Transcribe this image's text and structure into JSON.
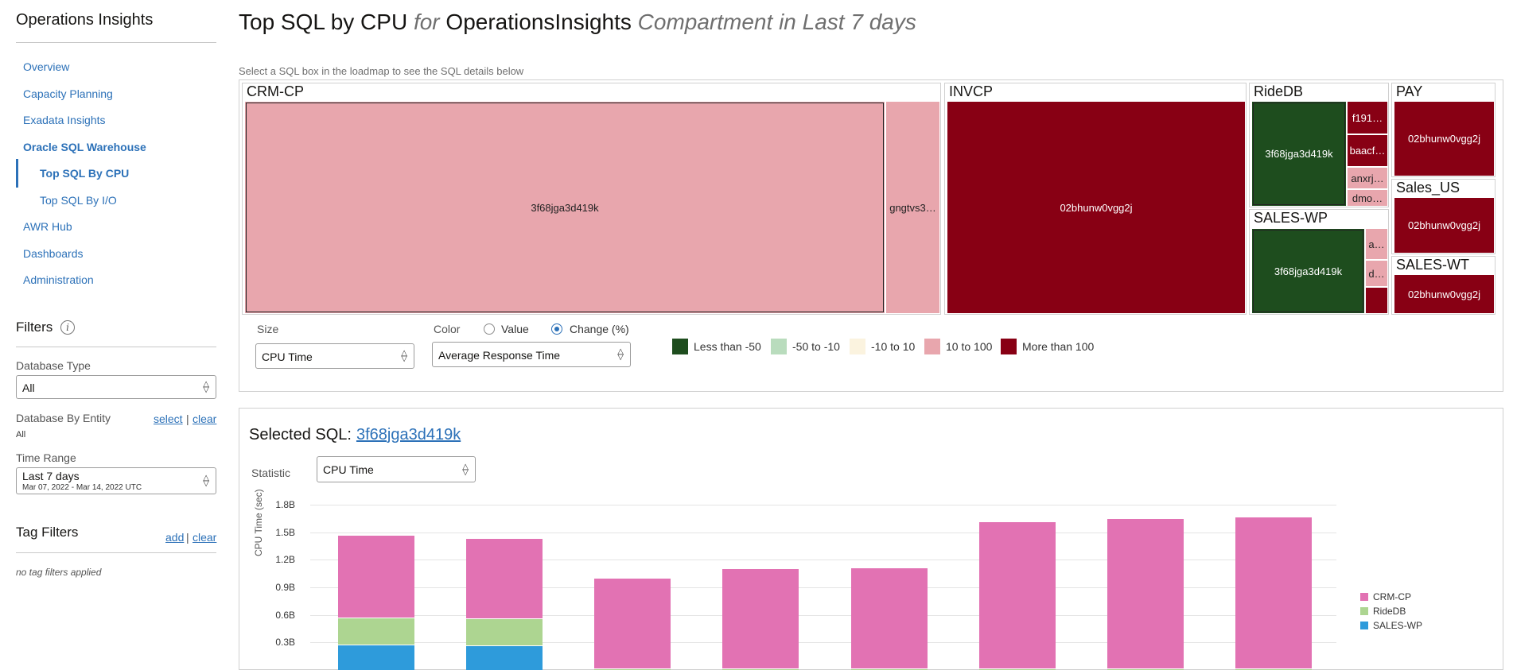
{
  "sidebar": {
    "title": "Operations Insights",
    "nav": [
      "Overview",
      "Capacity Planning",
      "Exadata Insights",
      "Oracle SQL Warehouse",
      "Top SQL By CPU",
      "Top SQL By I/O",
      "AWR Hub",
      "Dashboards",
      "Administration"
    ],
    "filters_title": "Filters",
    "db_type_label": "Database Type",
    "db_type_value": "All",
    "db_entity_label": "Database By Entity",
    "db_entity_value": "All",
    "select_link": "select",
    "clear_link": "clear",
    "time_range_label": "Time Range",
    "time_range_value": "Last 7 days",
    "time_range_sub": "Mar 07, 2022 - Mar 14, 2022 UTC",
    "tag_filters_title": "Tag Filters",
    "add_link": "add",
    "tag_clear_link": "clear",
    "no_tags": "no tag filters applied"
  },
  "header": {
    "part1": "Top SQL by CPU",
    "part2": "for",
    "part3": "OperationsInsights",
    "part4": "Compartment in Last 7 days"
  },
  "hint": "Select a SQL box in the loadmap to see the SQL details below",
  "treemap": {
    "groups": [
      "CRM-CP",
      "INVCP",
      "RideDB",
      "PAY",
      "Sales_US",
      "SALES-WP",
      "SALES-WT"
    ],
    "cells": {
      "crm_main": "3f68jga3d419k",
      "crm_side": "gngtvs3…",
      "invcp_main": "02bhunw0vgg2j",
      "ride_main": "3f68jga3d419k",
      "ride_a": "f191…",
      "ride_b": "baacf…",
      "ride_c": "anxrj…",
      "ride_d": "dmo…",
      "pay_main": "02bhunw0vgg2j",
      "salesus_main": "02bhunw0vgg2j",
      "saleswp_main": "3f68jga3d419k",
      "saleswp_a": "a…",
      "saleswp_b": "d…",
      "saleswt_main": "02bhunw0vgg2j"
    }
  },
  "controls": {
    "size_label": "Size",
    "size_value": "CPU Time",
    "color_label": "Color",
    "radio_value": "Value",
    "radio_change": "Change (%)",
    "color_value": "Average Response Time"
  },
  "legend": [
    {
      "label": "Less than -50",
      "color": "#1e4d1e"
    },
    {
      "label": "-50 to -10",
      "color": "#b9dcbd"
    },
    {
      "label": "-10 to 10",
      "color": "#fbf3df"
    },
    {
      "label": "10 to 100",
      "color": "#e8a6ad"
    },
    {
      "label": "More than 100",
      "color": "#880014"
    }
  ],
  "detail": {
    "selected_label": "Selected SQL:",
    "selected_sql": "3f68jga3d419k",
    "statistic_label": "Statistic",
    "statistic_value": "CPU Time"
  },
  "chart_data": {
    "type": "bar",
    "stacked": true,
    "ylabel": "CPU Time (sec)",
    "yticks": [
      "1.8B",
      "1.5B",
      "1.2B",
      "0.9B",
      "0.6B",
      "0.3B"
    ],
    "ylim": [
      0,
      1.8
    ],
    "categories": [
      "",
      "",
      "",
      "",
      "",
      "",
      "",
      ""
    ],
    "series": [
      {
        "name": "SALES-WP",
        "color": "#2e9bdb",
        "values": [
          0.28,
          0.27,
          0,
          0,
          0,
          0,
          0,
          0
        ]
      },
      {
        "name": "RideDB",
        "color": "#add591",
        "values": [
          0.29,
          0.29,
          0.02,
          0.02,
          0.02,
          0.02,
          0.02,
          0.02
        ]
      },
      {
        "name": "CRM-CP",
        "color": "#e272b3",
        "values": [
          0.9,
          0.88,
          0.98,
          1.09,
          1.1,
          1.6,
          1.63,
          1.65
        ]
      }
    ],
    "legend_order": [
      "CRM-CP",
      "RideDB",
      "SALES-WP"
    ]
  }
}
